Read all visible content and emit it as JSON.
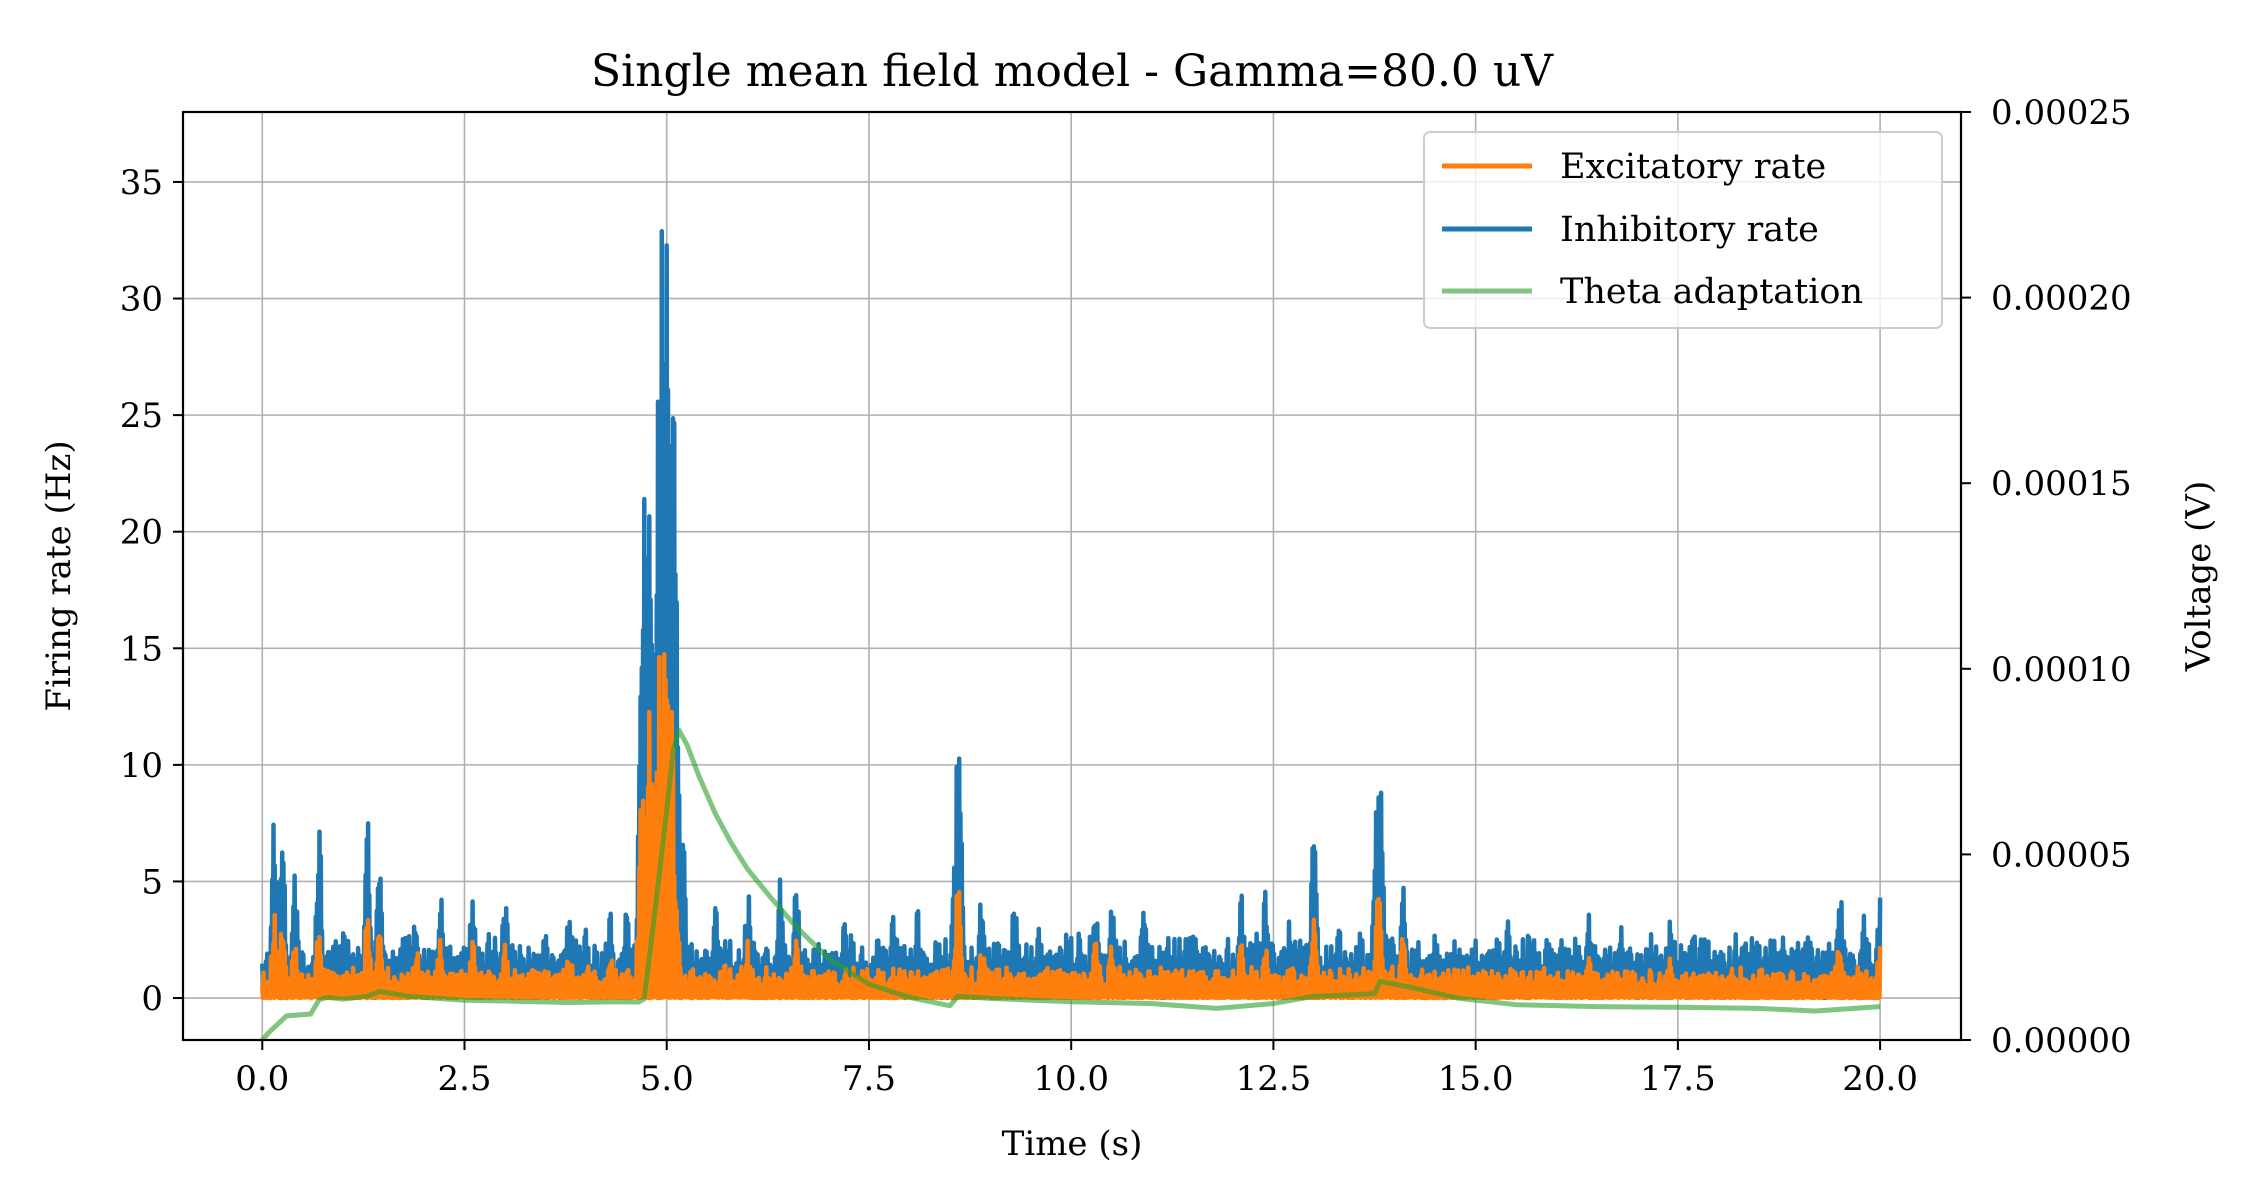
{
  "chart_data": {
    "type": "line",
    "title": "Single mean field model - Gamma=80.0 uV",
    "xlabel": "Time (s)",
    "ylabel": "Firing rate (Hz)",
    "y2label": "Voltage (V)",
    "xlim": [
      -0.98,
      21.0
    ],
    "ylim": [
      -1.8,
      38.0
    ],
    "y2lim": [
      0.0,
      0.00025
    ],
    "xticks": [
      0.0,
      2.5,
      5.0,
      7.5,
      10.0,
      12.5,
      15.0,
      17.5,
      20.0
    ],
    "xtick_labels": [
      "0.0",
      "2.5",
      "5.0",
      "7.5",
      "10.0",
      "12.5",
      "15.0",
      "17.5",
      "20.0"
    ],
    "yticks": [
      0,
      5,
      10,
      15,
      20,
      25,
      30,
      35
    ],
    "ytick_labels": [
      "0",
      "5",
      "10",
      "15",
      "20",
      "25",
      "30",
      "35"
    ],
    "y2ticks": [
      0.0,
      5e-05,
      0.0001,
      0.00015,
      0.0002,
      0.00025
    ],
    "y2tick_labels": [
      "0.00000",
      "0.00005",
      "0.00010",
      "0.00015",
      "0.00020",
      "0.00025"
    ],
    "grid": true,
    "legend_position": "upper-right",
    "series": [
      {
        "name": "Inhibitory rate",
        "axis": "left",
        "color": "#1f77b4",
        "baseline": 0.4,
        "noise_top": 2.8,
        "peaks": [
          [
            0.15,
            8.1
          ],
          [
            0.25,
            6.6
          ],
          [
            0.4,
            5.8
          ],
          [
            0.7,
            7.6
          ],
          [
            1.0,
            3.2
          ],
          [
            1.3,
            7.9
          ],
          [
            1.45,
            6.2
          ],
          [
            1.9,
            3.8
          ],
          [
            2.2,
            4.9
          ],
          [
            2.6,
            4.7
          ],
          [
            2.8,
            3.0
          ],
          [
            3.0,
            4.8
          ],
          [
            3.5,
            3.5
          ],
          [
            3.8,
            4.6
          ],
          [
            4.0,
            3.5
          ],
          [
            4.3,
            4.0
          ],
          [
            4.5,
            4.1
          ],
          [
            4.72,
            23.0
          ],
          [
            4.78,
            26.5
          ],
          [
            4.82,
            24.0
          ],
          [
            4.9,
            30.5
          ],
          [
            4.95,
            34.3
          ],
          [
            4.98,
            36.2
          ],
          [
            5.03,
            28.0
          ],
          [
            5.08,
            26.5
          ],
          [
            5.12,
            12.0
          ],
          [
            5.2,
            8.0
          ],
          [
            5.6,
            4.5
          ],
          [
            6.0,
            4.8
          ],
          [
            6.4,
            5.5
          ],
          [
            6.6,
            5.7
          ],
          [
            7.2,
            3.5
          ],
          [
            7.8,
            3.7
          ],
          [
            8.1,
            3.9
          ],
          [
            8.6,
            11.1
          ],
          [
            8.9,
            5.4
          ],
          [
            9.3,
            4.6
          ],
          [
            9.6,
            3.5
          ],
          [
            10.1,
            3.3
          ],
          [
            10.3,
            4.7
          ],
          [
            10.5,
            4.9
          ],
          [
            10.9,
            3.9
          ],
          [
            11.5,
            3.2
          ],
          [
            12.1,
            4.9
          ],
          [
            12.4,
            5.1
          ],
          [
            12.7,
            3.9
          ],
          [
            13.0,
            8.3
          ],
          [
            13.3,
            3.6
          ],
          [
            13.8,
            11.8
          ],
          [
            14.1,
            5.1
          ],
          [
            14.5,
            3.1
          ],
          [
            15.0,
            2.6
          ],
          [
            15.4,
            3.3
          ],
          [
            15.9,
            3.3
          ],
          [
            16.4,
            3.6
          ],
          [
            16.8,
            3.4
          ],
          [
            17.4,
            3.6
          ],
          [
            17.8,
            3.2
          ],
          [
            18.3,
            3.0
          ],
          [
            18.7,
            2.9
          ],
          [
            19.1,
            3.5
          ],
          [
            19.5,
            5.2
          ],
          [
            19.8,
            4.0
          ],
          [
            20.0,
            4.4
          ]
        ]
      },
      {
        "name": "Excitatory rate",
        "axis": "left",
        "color": "#ff7f0e",
        "baseline": 0.05,
        "noise_top": 1.4,
        "peaks": [
          [
            0.15,
            3.8
          ],
          [
            0.25,
            3.2
          ],
          [
            0.4,
            2.8
          ],
          [
            0.7,
            3.6
          ],
          [
            1.3,
            3.6
          ],
          [
            1.45,
            3.0
          ],
          [
            1.9,
            2.4
          ],
          [
            2.2,
            2.5
          ],
          [
            2.6,
            2.5
          ],
          [
            3.0,
            2.4
          ],
          [
            3.8,
            2.3
          ],
          [
            4.3,
            2.1
          ],
          [
            4.72,
            12.0
          ],
          [
            4.8,
            13.0
          ],
          [
            4.9,
            14.8
          ],
          [
            4.98,
            17.3
          ],
          [
            5.05,
            13.5
          ],
          [
            5.12,
            4.5
          ],
          [
            6.0,
            2.5
          ],
          [
            6.6,
            2.9
          ],
          [
            8.6,
            5.2
          ],
          [
            8.9,
            2.7
          ],
          [
            10.3,
            2.4
          ],
          [
            10.5,
            2.5
          ],
          [
            12.1,
            2.5
          ],
          [
            12.4,
            2.6
          ],
          [
            13.0,
            3.8
          ],
          [
            13.8,
            5.6
          ],
          [
            14.1,
            2.6
          ],
          [
            16.4,
            1.9
          ],
          [
            17.4,
            2.0
          ],
          [
            19.5,
            2.6
          ],
          [
            20.0,
            2.3
          ]
        ]
      },
      {
        "name": "Theta adaptation",
        "axis": "right",
        "color": "#2ca02c",
        "opacity": 0.6,
        "points": [
          [
            0.0,
            0.0
          ],
          [
            0.08,
            2e-06
          ],
          [
            0.3,
            6.5e-06
          ],
          [
            0.6,
            7e-06
          ],
          [
            0.7,
            1.08e-05
          ],
          [
            0.8,
            1.15e-05
          ],
          [
            1.0,
            1.1e-05
          ],
          [
            1.3,
            1.18e-05
          ],
          [
            1.45,
            1.31e-05
          ],
          [
            1.8,
            1.18e-05
          ],
          [
            2.5,
            1.07e-05
          ],
          [
            3.0,
            1.05e-05
          ],
          [
            3.8,
            1.01e-05
          ],
          [
            4.4,
            1.03e-05
          ],
          [
            4.65,
            1.02e-05
          ],
          [
            4.72,
            1.1e-05
          ],
          [
            4.8,
            2.5e-05
          ],
          [
            4.9,
            4.3e-05
          ],
          [
            5.0,
            6.2e-05
          ],
          [
            5.08,
            7.8e-05
          ],
          [
            5.15,
            8.35e-05
          ],
          [
            5.25,
            7.95e-05
          ],
          [
            5.4,
            7.1e-05
          ],
          [
            5.6,
            6.1e-05
          ],
          [
            5.8,
            5.3e-05
          ],
          [
            6.0,
            4.6e-05
          ],
          [
            6.3,
            3.8e-05
          ],
          [
            6.6,
            3.05e-05
          ],
          [
            7.0,
            2.2e-05
          ],
          [
            7.5,
            1.5e-05
          ],
          [
            8.0,
            1.15e-05
          ],
          [
            8.5,
            9.2e-06
          ],
          [
            8.6,
            1.18e-05
          ],
          [
            9.0,
            1.12e-05
          ],
          [
            10.0,
            1.03e-05
          ],
          [
            11.0,
            9.8e-06
          ],
          [
            11.8,
            8.5e-06
          ],
          [
            12.5,
            9.8e-06
          ],
          [
            13.0,
            1.18e-05
          ],
          [
            13.5,
            1.22e-05
          ],
          [
            13.75,
            1.25e-05
          ],
          [
            13.82,
            1.58e-05
          ],
          [
            14.2,
            1.42e-05
          ],
          [
            14.8,
            1.12e-05
          ],
          [
            15.5,
            9.5e-06
          ],
          [
            16.5,
            9e-06
          ],
          [
            17.5,
            8.8e-06
          ],
          [
            18.5,
            8.5e-06
          ],
          [
            19.2,
            7.8e-06
          ],
          [
            20.0,
            9e-06
          ]
        ]
      }
    ]
  }
}
